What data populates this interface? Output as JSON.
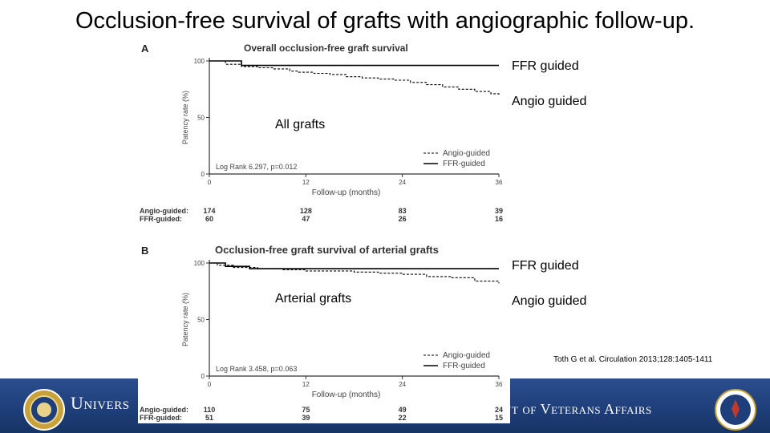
{
  "slide": {
    "title": "Occlusion-free survival of grafts with angiographic follow-up.",
    "citation": "Toth G et al. Circulation 2013;128:1405-1411",
    "callouts": {
      "ffr_top": "FFR guided",
      "angio_top": "Angio guided",
      "all_grafts": "All grafts",
      "ffr_bottom": "FFR guided",
      "arterial_grafts": "Arterial grafts",
      "angio_bottom": "Angio guided"
    },
    "footer": {
      "left_text": "Univers",
      "right_s": "s",
      "right_text": "nt of Veterans Affairs"
    },
    "colors": {
      "footer_blue": "#1f3f7a",
      "curve_color": "#000000"
    }
  },
  "chart_data": [
    {
      "type": "line",
      "panel_label": "A",
      "title": "Overall occlusion-free graft survival",
      "xlabel": "Follow-up (months)",
      "ylabel": "Patency rate (%)",
      "xlim": [
        0,
        36
      ],
      "ylim": [
        0,
        100
      ],
      "xticks": [
        0,
        12,
        24,
        36
      ],
      "yticks": [
        0,
        50,
        100
      ],
      "annotation": "Log Rank 6.297, p=0.012",
      "legend_position": "bottom-right",
      "series": [
        {
          "name": "Angio-guided",
          "style": "dashed",
          "x": [
            0,
            2,
            4,
            6,
            8,
            10,
            11,
            13,
            15,
            17,
            19,
            21,
            23,
            25,
            27,
            29,
            31,
            33,
            35,
            36
          ],
          "y": [
            100,
            97,
            95,
            94,
            93,
            91,
            90,
            89,
            88,
            86,
            85,
            84,
            83,
            81,
            79,
            77,
            75,
            73,
            71,
            70
          ]
        },
        {
          "name": "FFR-guided",
          "style": "solid",
          "x": [
            0,
            4,
            4,
            36
          ],
          "y": [
            100,
            100,
            96,
            96
          ]
        }
      ],
      "risk_table": {
        "rows": [
          {
            "label": "Angio-guided:",
            "values": [
              "174",
              "128",
              "83",
              "39"
            ]
          },
          {
            "label": "FFR-guided:",
            "values": [
              "60",
              "47",
              "26",
              "16"
            ]
          }
        ]
      }
    },
    {
      "type": "line",
      "panel_label": "B",
      "title": "Occlusion-free graft survival of arterial grafts",
      "xlabel": "Follow-up (months)",
      "ylabel": "Patency rate (%)",
      "xlim": [
        0,
        36
      ],
      "ylim": [
        0,
        100
      ],
      "xticks": [
        0,
        12,
        24,
        36
      ],
      "yticks": [
        0,
        50,
        100
      ],
      "annotation": "Log Rank 3.458, p=0.063",
      "legend_position": "bottom-right",
      "series": [
        {
          "name": "Angio-guided",
          "style": "dashed",
          "x": [
            0,
            1,
            3,
            6,
            9,
            12,
            15,
            18,
            21,
            24,
            27,
            30,
            33,
            36
          ],
          "y": [
            100,
            98,
            96,
            95,
            94,
            93,
            93,
            92,
            91,
            90,
            88,
            87,
            84,
            82
          ]
        },
        {
          "name": "FFR-guided",
          "style": "solid",
          "x": [
            0,
            2,
            2,
            5,
            5,
            36
          ],
          "y": [
            100,
            100,
            97,
            97,
            95,
            95
          ]
        }
      ],
      "risk_table": {
        "rows": [
          {
            "label": "Angio-guided:",
            "values": [
              "110",
              "75",
              "49",
              "24"
            ]
          },
          {
            "label": "FFR-guided:",
            "values": [
              "51",
              "39",
              "22",
              "15"
            ]
          }
        ]
      }
    }
  ]
}
